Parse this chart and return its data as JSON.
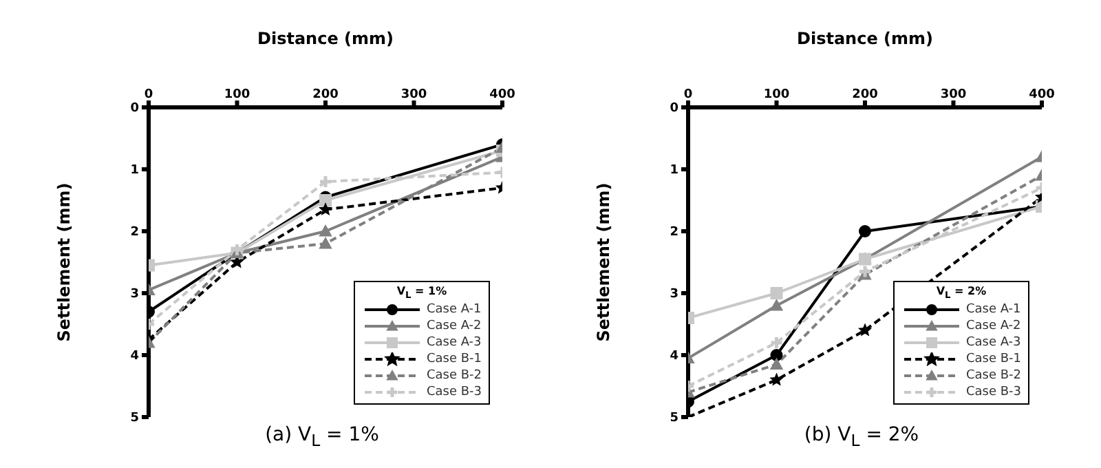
{
  "chart_data": [
    {
      "type": "line",
      "title": "(a) V$_{L}$ = 1%",
      "xlabel": "Distance (mm)",
      "ylabel": "Settlement (mm)",
      "legend_title": "V$_{L}$ = 1%",
      "legend": "bottom right",
      "grid": false,
      "x": [
        0,
        100,
        200,
        400
      ],
      "xlim": [
        0,
        400
      ],
      "xticks": [
        0,
        100,
        200,
        300,
        400
      ],
      "ylim": [
        5,
        0
      ],
      "yticks": [
        0,
        1,
        2,
        3,
        4,
        5
      ],
      "series": [
        {
          "name": "Case A-1",
          "color": "#000000",
          "marker": "circle",
          "line_style": "solid",
          "values": [
            3.3,
            2.35,
            1.45,
            0.6
          ]
        },
        {
          "name": "Case A-2",
          "color": "#808080",
          "marker": "triangle",
          "line_style": "solid",
          "values": [
            2.95,
            2.35,
            2.0,
            0.8
          ]
        },
        {
          "name": "Case A-3",
          "color": "#c8c8c8",
          "marker": "square",
          "line_style": "solid",
          "values": [
            2.55,
            2.35,
            1.5,
            0.7
          ]
        },
        {
          "name": "Case B-1",
          "color": "#000000",
          "marker": "star",
          "line_style": "dashed",
          "values": [
            3.75,
            2.5,
            1.65,
            1.3
          ]
        },
        {
          "name": "Case B-2",
          "color": "#808080",
          "marker": "triangle",
          "line_style": "dashed",
          "values": [
            3.8,
            2.35,
            2.2,
            0.65
          ]
        },
        {
          "name": "Case B-3",
          "color": "#c8c8c8",
          "marker": "cross",
          "line_style": "dashed",
          "values": [
            3.5,
            2.3,
            1.2,
            1.05
          ]
        }
      ]
    },
    {
      "type": "line",
      "title": "(b) V$_{L}$ = 2%",
      "xlabel": "Distance (mm)",
      "ylabel": "Settlement (mm)",
      "legend_title": "V$_{L}$ = 2%",
      "legend": "bottom right",
      "grid": false,
      "x": [
        0,
        100,
        200,
        400
      ],
      "xlim": [
        0,
        400
      ],
      "xticks": [
        0,
        100,
        200,
        300,
        400
      ],
      "ylim": [
        5,
        0
      ],
      "yticks": [
        0,
        1,
        2,
        3,
        4,
        5
      ],
      "series": [
        {
          "name": "Case A-1",
          "color": "#000000",
          "marker": "circle",
          "line_style": "solid",
          "values": [
            4.75,
            4.0,
            2.0,
            1.6
          ]
        },
        {
          "name": "Case A-2",
          "color": "#808080",
          "marker": "triangle",
          "line_style": "solid",
          "values": [
            4.05,
            3.2,
            2.45,
            0.8
          ]
        },
        {
          "name": "Case A-3",
          "color": "#c8c8c8",
          "marker": "square",
          "line_style": "solid",
          "values": [
            3.4,
            3.0,
            2.45,
            1.6
          ]
        },
        {
          "name": "Case B-1",
          "color": "#000000",
          "marker": "star",
          "line_style": "dashed",
          "values": [
            5.0,
            4.4,
            3.6,
            1.45
          ]
        },
        {
          "name": "Case B-2",
          "color": "#808080",
          "marker": "triangle",
          "line_style": "dashed",
          "values": [
            4.6,
            4.15,
            2.7,
            1.1
          ]
        },
        {
          "name": "Case B-3",
          "color": "#c8c8c8",
          "marker": "cross",
          "line_style": "dashed",
          "values": [
            4.5,
            3.8,
            2.65,
            1.3
          ]
        }
      ]
    }
  ]
}
